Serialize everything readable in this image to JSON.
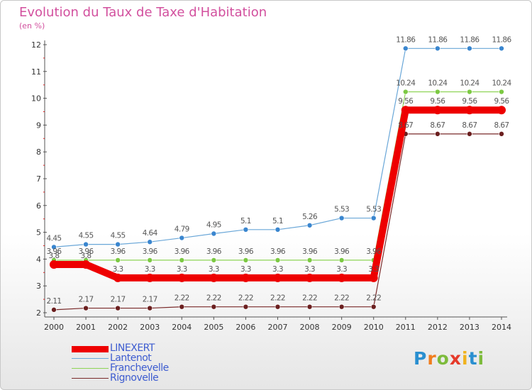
{
  "header": {
    "title": "Evolution du Taux de Taxe d'Habitation",
    "subtitle": "(en %)"
  },
  "chart_data": {
    "type": "line",
    "title": "Evolution du Taux de Taxe d'Habitation",
    "ylabel": "(en %)",
    "x": [
      "2000",
      "2001",
      "2002",
      "2003",
      "2004",
      "2005",
      "2006",
      "2007",
      "2008",
      "2009",
      "2010",
      "2011",
      "2012",
      "2013",
      "2014"
    ],
    "ylim": [
      2,
      12
    ],
    "yticks": [
      2,
      3,
      4,
      5,
      6,
      7,
      8,
      9,
      10,
      11,
      12
    ],
    "grid": false,
    "legend_position": "bottom-left",
    "series": [
      {
        "name": "LINEXERT",
        "color": "#ee0000",
        "values": [
          3.8,
          3.8,
          3.3,
          3.3,
          3.3,
          3.3,
          3.3,
          3.3,
          3.3,
          3.3,
          3.3,
          9.56,
          9.56,
          9.56,
          9.56
        ]
      },
      {
        "name": "Lantenot",
        "color": "#6aa7d8",
        "values": [
          4.45,
          4.55,
          4.55,
          4.64,
          4.79,
          4.95,
          5.1,
          5.1,
          5.26,
          5.53,
          5.53,
          11.86,
          11.86,
          11.86,
          11.86
        ]
      },
      {
        "name": "Franchevelle",
        "color": "#8ed455",
        "values": [
          3.96,
          3.96,
          3.96,
          3.96,
          3.96,
          3.96,
          3.96,
          3.96,
          3.96,
          3.96,
          3.96,
          10.24,
          10.24,
          10.24,
          10.24
        ]
      },
      {
        "name": "Rignovelle",
        "color": "#7a2a2a",
        "values": [
          2.11,
          2.17,
          2.17,
          2.17,
          2.22,
          2.22,
          2.22,
          2.22,
          2.22,
          2.22,
          2.22,
          8.67,
          8.67,
          8.67,
          8.67
        ]
      }
    ]
  },
  "logo": {
    "letters": [
      "P",
      "r",
      "o",
      "x",
      "i",
      "t",
      "i"
    ],
    "colors": [
      "#2a8fd0",
      "#f07d1e",
      "#7dbb3c",
      "#e53a2a",
      "#f0b21e",
      "#2a8fd0",
      "#7dbb3c"
    ]
  }
}
